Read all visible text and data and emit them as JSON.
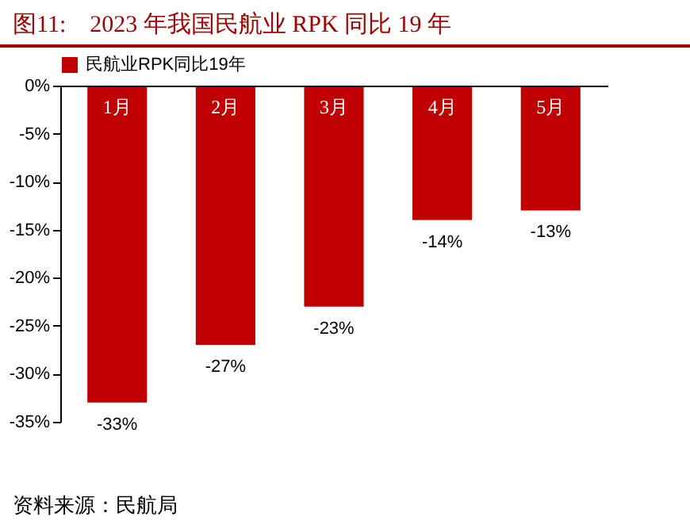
{
  "chart_data": {
    "type": "bar",
    "title": "图11:　2023 年我国民航业 RPK 同比 19 年",
    "categories": [
      "1月",
      "2月",
      "3月",
      "4月",
      "5月"
    ],
    "series": [
      {
        "name": "民航业RPK同比19年",
        "color": "#c00000",
        "values": [
          -33,
          -27,
          -23,
          -14,
          -13
        ],
        "value_labels": [
          "-33%",
          "-27%",
          "-23%",
          "-14%",
          "-13%"
        ]
      }
    ],
    "ylim": [
      -35,
      0
    ],
    "yticks": [
      {
        "value": 0,
        "label": "0%"
      },
      {
        "value": -5,
        "label": "-5%"
      },
      {
        "value": -10,
        "label": "-10%"
      },
      {
        "value": -15,
        "label": "-15%"
      },
      {
        "value": -20,
        "label": "-20%"
      },
      {
        "value": -25,
        "label": "-25%"
      },
      {
        "value": -30,
        "label": "-30%"
      },
      {
        "value": -35,
        "label": "-35%"
      }
    ],
    "legend": "top",
    "grid": false,
    "annotations": [
      "资料来源：民航局"
    ]
  }
}
